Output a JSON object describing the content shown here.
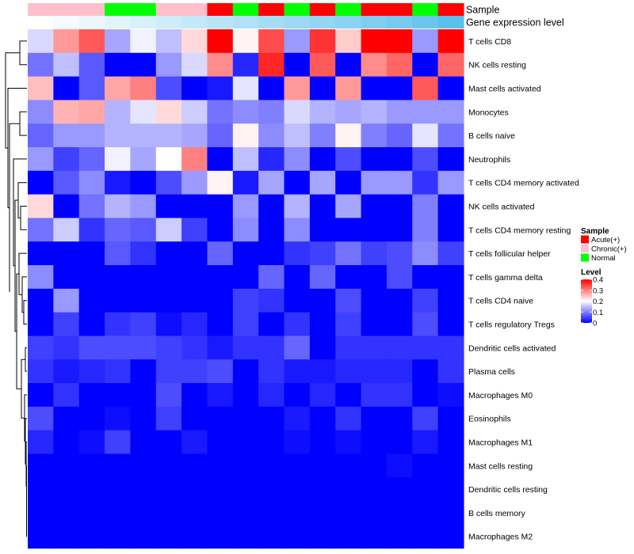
{
  "chart_data": {
    "type": "heatmap",
    "title": "",
    "annotation_tracks": [
      {
        "label": "Sample",
        "key": "sample",
        "values": [
          "Chronic(+)",
          "Chronic(+)",
          "Chronic(+)",
          "Normal",
          "Normal",
          "Chronic(+)",
          "Chronic(+)",
          "Acute(+)",
          "Normal",
          "Acute(+)",
          "Normal",
          "Acute(+)",
          "Normal",
          "Acute(+)",
          "Acute(+)",
          "Normal",
          "Acute(+)"
        ]
      },
      {
        "label": "Gene expression level",
        "key": "gene_level",
        "values": [
          0.0,
          0.06,
          0.12,
          0.18,
          0.24,
          0.3,
          0.36,
          0.42,
          0.48,
          0.54,
          0.6,
          0.66,
          0.72,
          0.78,
          0.84,
          0.9,
          1.0
        ]
      }
    ],
    "rows": [
      "T cells CD8",
      "NK cells resting",
      "Mast cells activated",
      "Monocytes",
      "B cells naive",
      "Neutrophils",
      "T cells CD4 memory activated",
      "NK cells activated",
      "T cells CD4 memory resting",
      "T cells follicular helper",
      "T cells gamma delta",
      "T cells CD4 naive",
      "T cells regulatory  Tregs",
      "Dendritic cells activated",
      "Plasma cells",
      "Macrophages M0",
      "Eosinophils",
      "Macrophages M1",
      "Mast cells resting",
      "Dendritic cells resting",
      "B cells memory",
      "Macrophages M2"
    ],
    "values": [
      [
        0.17,
        0.28,
        0.33,
        0.13,
        0.19,
        0.15,
        0.23,
        0.4,
        0.21,
        0.34,
        0.12,
        0.36,
        0.24,
        0.4,
        0.4,
        0.12,
        0.4
      ],
      [
        0.09,
        0.15,
        0.07,
        0.0,
        0.0,
        0.12,
        0.17,
        0.29,
        0.03,
        0.37,
        0.0,
        0.33,
        0.0,
        0.29,
        0.32,
        0.0,
        0.32
      ],
      [
        0.25,
        0.0,
        0.07,
        0.27,
        0.3,
        0.06,
        0.0,
        0.02,
        0.18,
        0.0,
        0.28,
        0.0,
        0.28,
        0.0,
        0.0,
        0.33,
        0.0
      ],
      [
        0.11,
        0.26,
        0.27,
        0.14,
        0.18,
        0.23,
        0.16,
        0.09,
        0.11,
        0.1,
        0.17,
        0.14,
        0.13,
        0.14,
        0.12,
        0.12,
        0.12
      ],
      [
        0.08,
        0.12,
        0.12,
        0.14,
        0.14,
        0.14,
        0.13,
        0.08,
        0.21,
        0.11,
        0.15,
        0.1,
        0.21,
        0.1,
        0.08,
        0.18,
        0.09
      ],
      [
        0.12,
        0.05,
        0.08,
        0.19,
        0.13,
        0.2,
        0.3,
        0.0,
        0.15,
        0.03,
        0.11,
        0.0,
        0.06,
        0.0,
        0.0,
        0.06,
        0.0
      ],
      [
        0.0,
        0.07,
        0.11,
        0.02,
        0.0,
        0.06,
        0.12,
        0.21,
        0.02,
        0.13,
        0.0,
        0.13,
        0.0,
        0.12,
        0.12,
        0.04,
        0.12
      ],
      [
        0.23,
        0.0,
        0.09,
        0.14,
        0.12,
        0.0,
        0.0,
        0.0,
        0.12,
        0.0,
        0.14,
        0.0,
        0.13,
        0.0,
        0.0,
        0.1,
        0.0
      ],
      [
        0.09,
        0.16,
        0.04,
        0.08,
        0.07,
        0.16,
        0.05,
        0.0,
        0.11,
        0.0,
        0.11,
        0.0,
        0.0,
        0.0,
        0.0,
        0.1,
        0.0
      ],
      [
        0.0,
        0.0,
        0.0,
        0.07,
        0.04,
        0.0,
        0.0,
        0.08,
        0.0,
        0.0,
        0.04,
        0.05,
        0.09,
        0.05,
        0.06,
        0.11,
        0.05
      ],
      [
        0.11,
        0.0,
        0.0,
        0.0,
        0.0,
        0.0,
        0.0,
        0.0,
        0.0,
        0.08,
        0.0,
        0.08,
        0.0,
        0.0,
        0.06,
        0.0,
        0.0
      ],
      [
        0.0,
        0.12,
        0.0,
        0.0,
        0.0,
        0.0,
        0.0,
        0.0,
        0.05,
        0.04,
        0.0,
        0.0,
        0.06,
        0.0,
        0.0,
        0.05,
        0.0
      ],
      [
        0.0,
        0.05,
        0.0,
        0.04,
        0.05,
        0.01,
        0.03,
        0.0,
        0.05,
        0.0,
        0.04,
        0.0,
        0.05,
        0.0,
        0.0,
        0.06,
        0.0
      ],
      [
        0.05,
        0.04,
        0.06,
        0.06,
        0.06,
        0.05,
        0.04,
        0.02,
        0.04,
        0.04,
        0.08,
        0.0,
        0.04,
        0.04,
        0.04,
        0.04,
        0.04
      ],
      [
        0.04,
        0.02,
        0.03,
        0.04,
        0.0,
        0.05,
        0.05,
        0.06,
        0.0,
        0.04,
        0.02,
        0.02,
        0.03,
        0.03,
        0.03,
        0.0,
        0.04
      ],
      [
        0.0,
        0.04,
        0.0,
        0.0,
        0.0,
        0.06,
        0.0,
        0.02,
        0.0,
        0.03,
        0.0,
        0.03,
        0.0,
        0.04,
        0.04,
        0.0,
        0.01
      ],
      [
        0.06,
        0.0,
        0.0,
        0.01,
        0.0,
        0.05,
        0.0,
        0.0,
        0.0,
        0.0,
        0.02,
        0.0,
        0.04,
        0.0,
        0.0,
        0.05,
        0.0
      ],
      [
        0.03,
        0.0,
        0.01,
        0.05,
        0.0,
        0.0,
        0.02,
        0.0,
        0.0,
        0.0,
        0.01,
        0.0,
        0.01,
        0.0,
        0.0,
        0.02,
        0.0
      ],
      [
        0.0,
        0.0,
        0.0,
        0.0,
        0.0,
        0.0,
        0.0,
        0.0,
        0.0,
        0.0,
        0.0,
        0.0,
        0.0,
        0.0,
        0.01,
        0.0,
        0.0
      ],
      [
        0.0,
        0.0,
        0.0,
        0.0,
        0.0,
        0.0,
        0.0,
        0.0,
        0.0,
        0.0,
        0.0,
        0.0,
        0.0,
        0.0,
        0.0,
        0.0,
        0.0
      ],
      [
        0.0,
        0.0,
        0.0,
        0.0,
        0.0,
        0.0,
        0.0,
        0.0,
        0.0,
        0.0,
        0.0,
        0.0,
        0.0,
        0.0,
        0.0,
        0.0,
        0.0
      ],
      [
        0.0,
        0.0,
        0.0,
        0.0,
        0.0,
        0.0,
        0.0,
        0.0,
        0.0,
        0.0,
        0.0,
        0.0,
        0.0,
        0.0,
        0.0,
        0.0,
        0.0
      ]
    ],
    "value_range": [
      0,
      0.4
    ],
    "legend": {
      "sample_title": "Sample",
      "sample_entries": [
        {
          "label": "Acute(+)",
          "color": "#ff0000"
        },
        {
          "label": "Chronic(+)",
          "color": "#ffc0cb"
        },
        {
          "label": "Normal",
          "color": "#00ff00"
        }
      ],
      "level_title": "Level",
      "level_ticks": [
        {
          "value": 0.4,
          "label": "0.4"
        },
        {
          "value": 0.3,
          "label": "0.3"
        },
        {
          "value": 0.2,
          "label": "0.2"
        },
        {
          "value": 0.1,
          "label": "0.1"
        },
        {
          "value": 0.0,
          "label": "0"
        }
      ],
      "placement": "right-middle"
    },
    "colors": {
      "low": "#0000ff",
      "mid": "#ffffff",
      "high": "#ff0000",
      "gene_level_low": "#ffffff",
      "gene_level_high": "#5bc0eb"
    },
    "dendrogram": "rows"
  }
}
